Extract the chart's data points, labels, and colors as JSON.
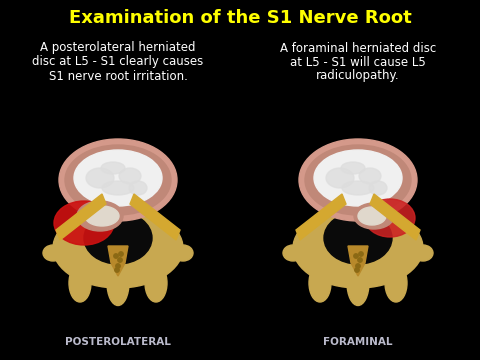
{
  "title": "Examination of the S1 Nerve Root",
  "title_color": "#FFFF00",
  "title_fontsize": 13,
  "bg_color": "#000000",
  "left_text_line1": "A posterolateral herniated",
  "left_text_line2": "disc at L5 - S1 clearly causes",
  "left_text_line3": "S1 nerve root irritation.",
  "right_text_line1": "A foraminal herniated disc",
  "right_text_line2": "at L5 - S1 will cause L5",
  "right_text_line3": "radiculopathy.",
  "label_left": "POSTEROLATERAL",
  "label_right": "FORAMINAL",
  "text_color": "#FFFFFF",
  "label_color": "#BBBBCC",
  "text_fontsize": 8.5,
  "label_fontsize": 7.5,
  "spine_color": "#C8A850",
  "spinous_color": "#B8892A",
  "disc_outer_color": "#D4998A",
  "disc_ring_color": "#C08878",
  "disc_inner_color": "#F0F0F0",
  "nerve_red": "#CC1111",
  "nerve_red2": "#CC2222",
  "lig_color": "#D4A830",
  "blob_color": "#DDDDDD",
  "dot_color": "#8B6914"
}
